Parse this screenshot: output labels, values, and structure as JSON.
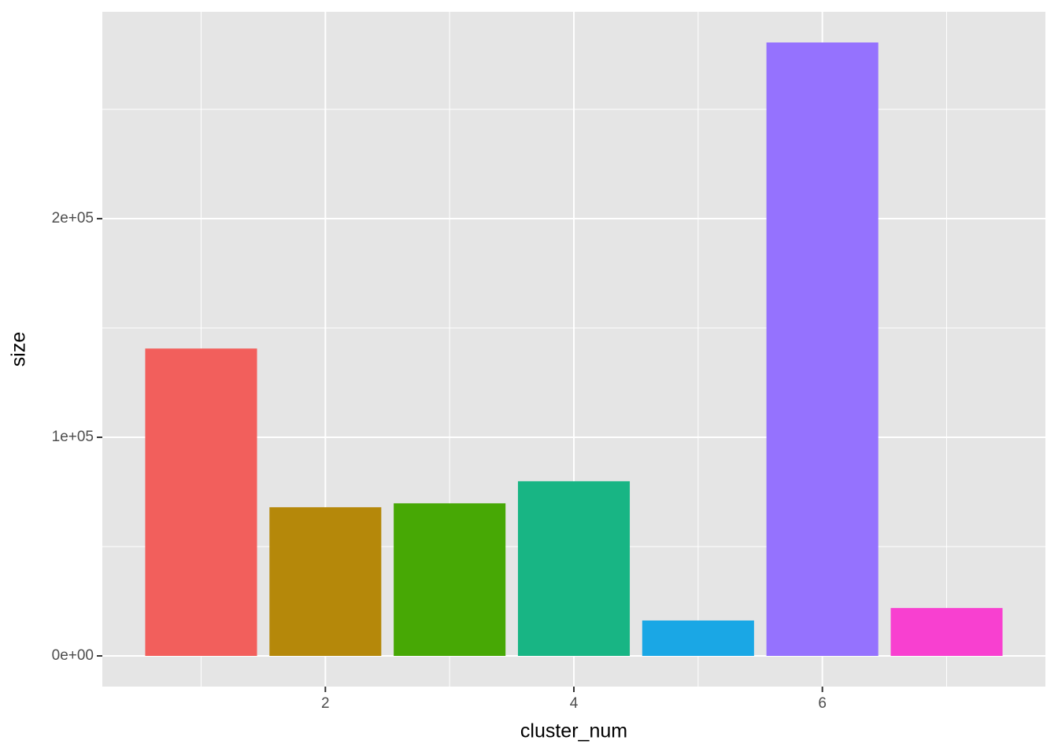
{
  "chart_data": {
    "type": "bar",
    "x_label": "cluster_num",
    "y_label": "size",
    "x": [
      1,
      2,
      3,
      4,
      5,
      6,
      7
    ],
    "values": [
      140600,
      68000,
      69800,
      79900,
      16200,
      280600,
      21900
    ],
    "colors": [
      "#F25F5C",
      "#B5880A",
      "#47A805",
      "#18B584",
      "#1AA7E5",
      "#9572FE",
      "#F840D0"
    ],
    "xlim": [
      0.205,
      7.795
    ],
    "xticks": [
      2,
      4,
      6
    ],
    "x_minor_ticks": [
      1,
      3,
      5,
      7
    ],
    "ylim": [
      -14030,
      294630
    ],
    "yticks": [
      {
        "value": 0,
        "label": "0e+00"
      },
      {
        "value": 100000,
        "label": "1e+05"
      },
      {
        "value": 200000,
        "label": "2e+05"
      }
    ],
    "y_minor_ticks": [
      50000,
      150000,
      250000
    ],
    "grid": true
  }
}
